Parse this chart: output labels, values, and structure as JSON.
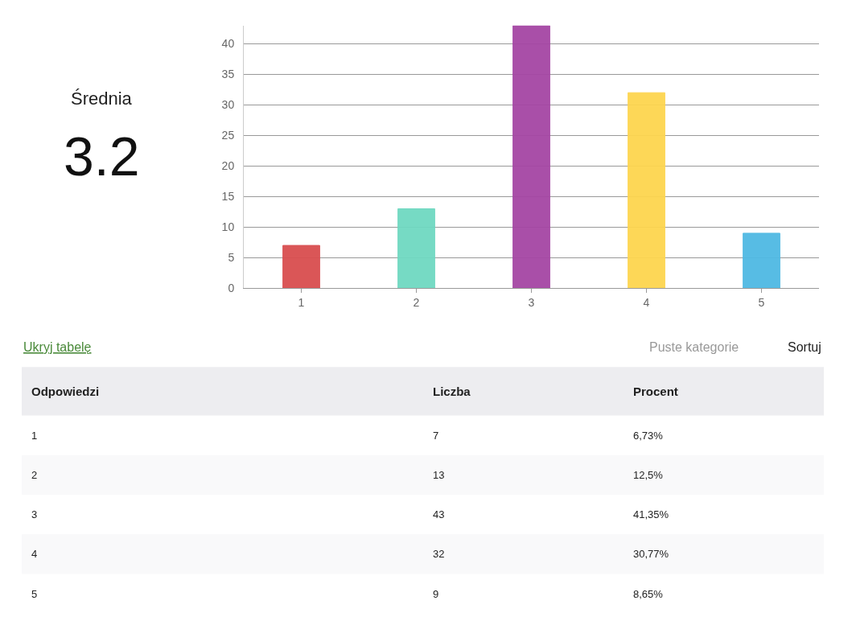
{
  "chart_data": {
    "type": "bar",
    "categories": [
      "1",
      "2",
      "3",
      "4",
      "5"
    ],
    "values": [
      7,
      13,
      43,
      32,
      9
    ],
    "colors": [
      "#d94d4f",
      "#6fd8c1",
      "#a546a4",
      "#fdd54f",
      "#4fb9e3"
    ],
    "ylim": [
      0,
      43
    ],
    "yticks": [
      0,
      5,
      10,
      15,
      20,
      25,
      30,
      35,
      40
    ],
    "grid": "y",
    "annotations": [
      "Średnia",
      "3.2",
      "Ukryj tabelę",
      "Puste kategorie",
      "Sortuj",
      "Odpowiedzi",
      "Liczba",
      "Procent",
      "6,73%",
      "12,5%",
      "41,35%",
      "30,77%",
      "8,65%",
      "7",
      "13",
      "43",
      "32",
      "9"
    ]
  }
}
